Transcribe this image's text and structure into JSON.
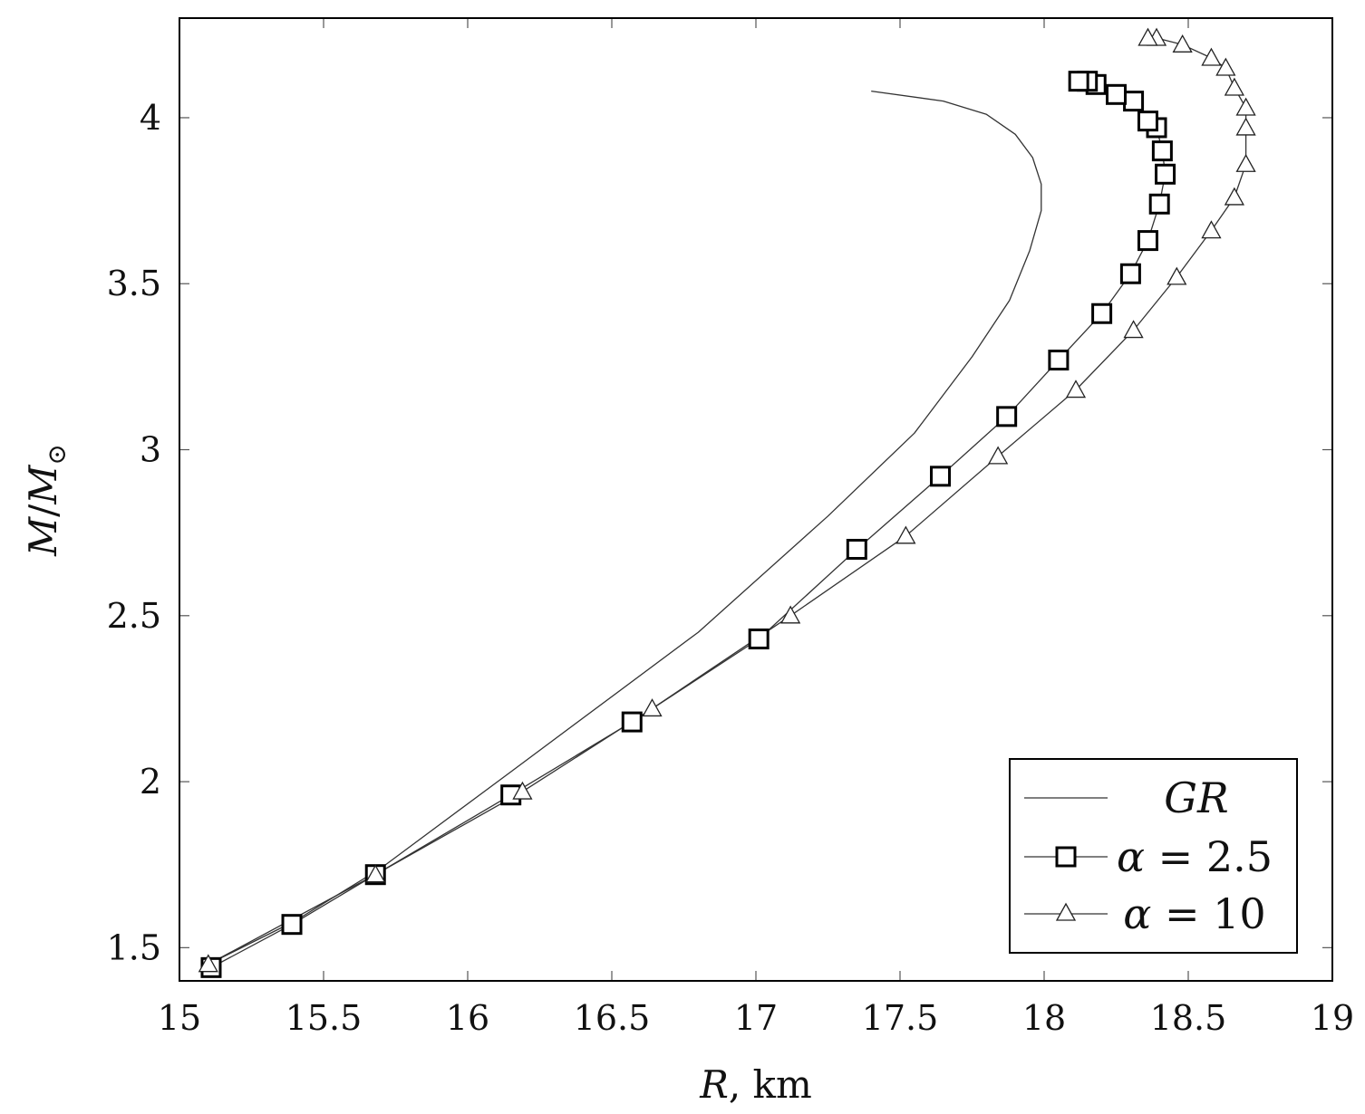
{
  "chart_data": {
    "type": "line",
    "xlabel": {
      "symbol": "R",
      "unit": ", km"
    },
    "ylabel": {
      "symbol": "M",
      "slash": "/",
      "sub_symbol": "M",
      "sub": "⊙"
    },
    "xlim": [
      15,
      19
    ],
    "ylim": [
      1.4,
      4.3
    ],
    "xticks": [
      15,
      15.5,
      16,
      16.5,
      17,
      17.5,
      18,
      18.5,
      19
    ],
    "xtick_labels": [
      "15",
      "15.5",
      "16",
      "16.5",
      "17",
      "17.5",
      "18",
      "18.5",
      "19"
    ],
    "yticks": [
      1.5,
      2,
      2.5,
      3,
      3.5,
      4
    ],
    "ytick_labels": [
      "1.5",
      "2",
      "2.5",
      "3",
      "3.5",
      "4"
    ],
    "grid": false,
    "legend_position": "bottom-right",
    "series": [
      {
        "name": "GR",
        "legend_label": {
          "italic": "GR",
          "rest": ""
        },
        "marker": "none",
        "x": [
          15.1,
          15.4,
          15.7,
          16.15,
          16.8,
          17.25,
          17.55,
          17.75,
          17.88,
          17.95,
          17.99,
          17.99,
          17.96,
          17.9,
          17.8,
          17.65,
          17.4
        ],
        "y": [
          1.45,
          1.58,
          1.74,
          2.03,
          2.45,
          2.8,
          3.05,
          3.28,
          3.45,
          3.6,
          3.72,
          3.8,
          3.88,
          3.95,
          4.01,
          4.05,
          4.08
        ]
      },
      {
        "name": "α = 2.5",
        "legend_label": {
          "italic": "α",
          "rest": " = 2.5"
        },
        "marker": "square",
        "x": [
          15.11,
          15.39,
          15.68,
          16.15,
          16.57,
          17.01,
          17.35,
          17.64,
          17.87,
          18.05,
          18.2,
          18.3,
          18.36,
          18.4,
          18.42,
          18.41,
          18.39,
          18.36,
          18.31,
          18.25,
          18.18,
          18.15,
          18.12
        ],
        "y": [
          1.44,
          1.57,
          1.72,
          1.96,
          2.18,
          2.43,
          2.7,
          2.92,
          3.1,
          3.27,
          3.41,
          3.53,
          3.63,
          3.74,
          3.83,
          3.9,
          3.97,
          3.99,
          4.05,
          4.07,
          4.1,
          4.11,
          4.11
        ]
      },
      {
        "name": "α = 10",
        "legend_label": {
          "italic": "α",
          "rest": " = 10"
        },
        "marker": "triangle",
        "x": [
          15.1,
          15.68,
          16.19,
          16.64,
          17.12,
          17.52,
          17.84,
          18.11,
          18.31,
          18.46,
          18.58,
          18.66,
          18.7,
          18.7,
          18.7,
          18.66,
          18.63,
          18.58,
          18.48,
          18.39,
          18.36
        ],
        "y": [
          1.45,
          1.72,
          1.97,
          2.22,
          2.5,
          2.74,
          2.98,
          3.18,
          3.36,
          3.52,
          3.66,
          3.76,
          3.86,
          3.97,
          4.03,
          4.09,
          4.15,
          4.18,
          4.22,
          4.24,
          4.24
        ]
      }
    ]
  }
}
